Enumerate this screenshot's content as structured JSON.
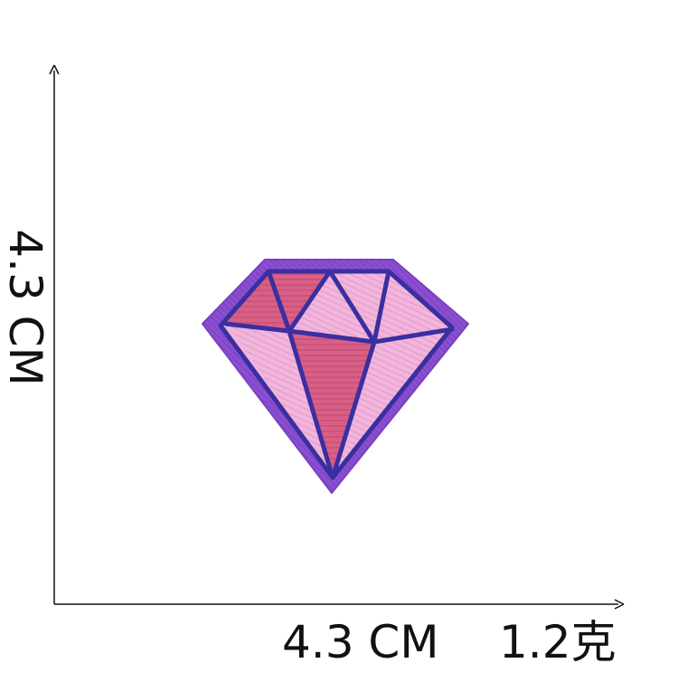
{
  "dimensions": {
    "width_label": "4.3 CM",
    "height_label": "4.3 CM",
    "weight_label": "1.2克"
  },
  "product": {
    "icon": "diamond-icon",
    "colors": {
      "border": "#8a4fd0",
      "outline": "#3a2fa0",
      "pink_dark": "#d95f86",
      "pink_light": "#f2b5dc"
    }
  }
}
